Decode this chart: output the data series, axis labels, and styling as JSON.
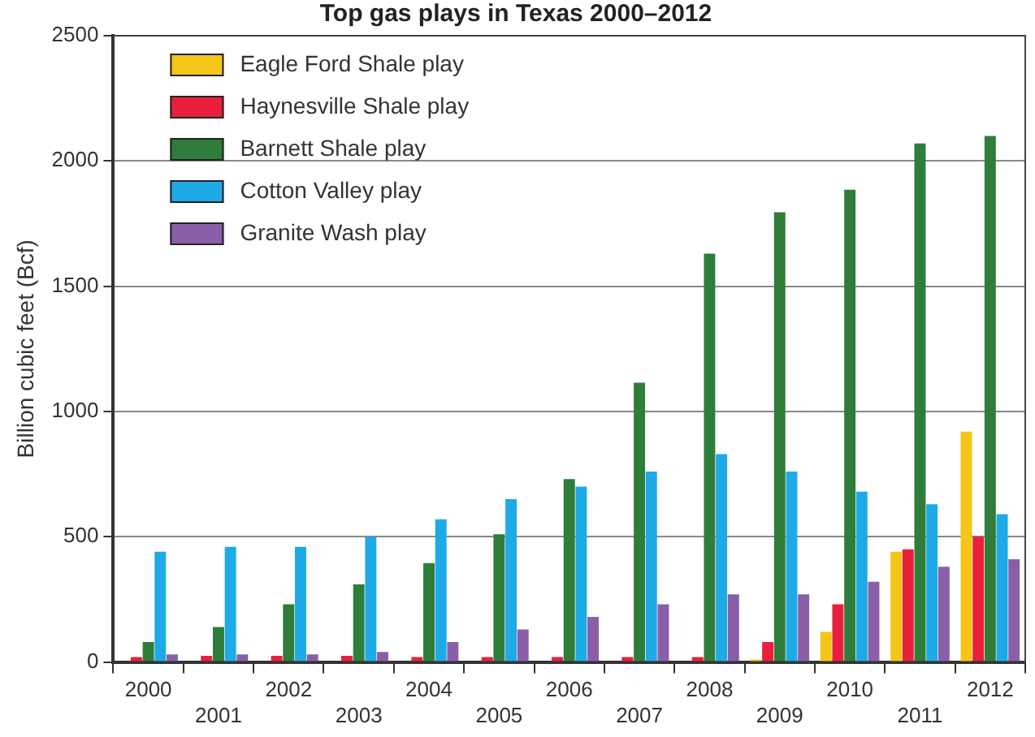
{
  "chart_data": {
    "type": "bar",
    "title": "Top gas plays in Texas 2000–2012",
    "ylabel": "Billion cubic feet (Bcf)",
    "categories": [
      "2000",
      "2001",
      "2002",
      "2003",
      "2004",
      "2005",
      "2006",
      "2007",
      "2008",
      "2009",
      "2010",
      "2011",
      "2012"
    ],
    "series": [
      {
        "name": "Eagle Ford Shale play",
        "color": "#f5c518",
        "values": [
          null,
          null,
          null,
          null,
          null,
          null,
          null,
          null,
          null,
          10,
          120,
          440,
          920
        ]
      },
      {
        "name": "Haynesville Shale play",
        "color": "#e8203c",
        "values": [
          20,
          25,
          25,
          25,
          20,
          20,
          20,
          20,
          20,
          80,
          230,
          450,
          500
        ]
      },
      {
        "name": "Barnett Shale play",
        "color": "#2e7d3a",
        "values": [
          80,
          140,
          230,
          310,
          395,
          510,
          730,
          1115,
          1630,
          1795,
          1885,
          2070,
          2100
        ]
      },
      {
        "name": "Cotton Valley play",
        "color": "#1eaae6",
        "values": [
          440,
          460,
          460,
          500,
          570,
          650,
          700,
          760,
          830,
          760,
          680,
          630,
          590
        ]
      },
      {
        "name": "Granite Wash play",
        "color": "#8a5fa8",
        "values": [
          30,
          30,
          30,
          40,
          80,
          130,
          180,
          230,
          270,
          270,
          320,
          380,
          410
        ]
      }
    ],
    "ylim": [
      0,
      2500
    ],
    "yticks": [
      0,
      500,
      1000,
      1500,
      2000,
      2500
    ],
    "grid": "y",
    "legend": "top left"
  }
}
